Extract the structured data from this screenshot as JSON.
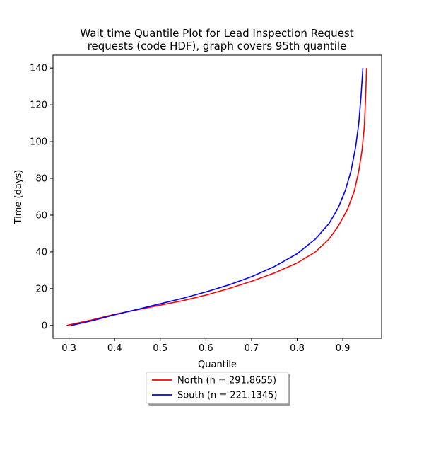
{
  "chart_data": {
    "type": "line",
    "title": [
      "Wait time Quantile Plot for Lead Inspection Request",
      "requests (code HDF), graph covers 95th quantile"
    ],
    "xlabel": "Quantile",
    "ylabel": "Time (days)",
    "xlim": [
      0.265,
      0.985
    ],
    "ylim": [
      -7,
      147
    ],
    "xticks": [
      0.3,
      0.4,
      0.5,
      0.6,
      0.7,
      0.8,
      0.9
    ],
    "xtick_labels": [
      "0.3",
      "0.4",
      "0.5",
      "0.6",
      "0.7",
      "0.8",
      "0.9"
    ],
    "yticks": [
      0,
      20,
      40,
      60,
      80,
      100,
      120,
      140
    ],
    "ytick_labels": [
      "0",
      "20",
      "40",
      "60",
      "80",
      "100",
      "120",
      "140"
    ],
    "grid": false,
    "legend_position": "below-center",
    "series": [
      {
        "name": "North (n = 291.8655)",
        "color": "#ff0000",
        "x": [
          0.295,
          0.35,
          0.4,
          0.45,
          0.5,
          0.55,
          0.6,
          0.65,
          0.7,
          0.75,
          0.8,
          0.84,
          0.87,
          0.89,
          0.91,
          0.925,
          0.935,
          0.942,
          0.947,
          0.95,
          0.952
        ],
        "y": [
          0.0,
          3.0,
          6.0,
          8.5,
          11.0,
          13.5,
          16.5,
          20.0,
          24.0,
          28.5,
          34.0,
          40.0,
          47.0,
          54.0,
          63.0,
          73.0,
          84.0,
          95.0,
          108.0,
          124.0,
          140.0
        ]
      },
      {
        "name": "South (n = 221.1345)",
        "color": "#0000ff",
        "x": [
          0.305,
          0.35,
          0.4,
          0.45,
          0.5,
          0.55,
          0.6,
          0.65,
          0.7,
          0.75,
          0.8,
          0.84,
          0.87,
          0.89,
          0.905,
          0.918,
          0.928,
          0.935,
          0.94,
          0.944
        ],
        "y": [
          0.0,
          2.5,
          5.8,
          8.7,
          11.8,
          14.8,
          18.2,
          22.0,
          26.5,
          32.0,
          39.0,
          47.0,
          55.5,
          64.0,
          73.0,
          84.0,
          97.0,
          110.0,
          125.0,
          140.0
        ]
      }
    ]
  }
}
